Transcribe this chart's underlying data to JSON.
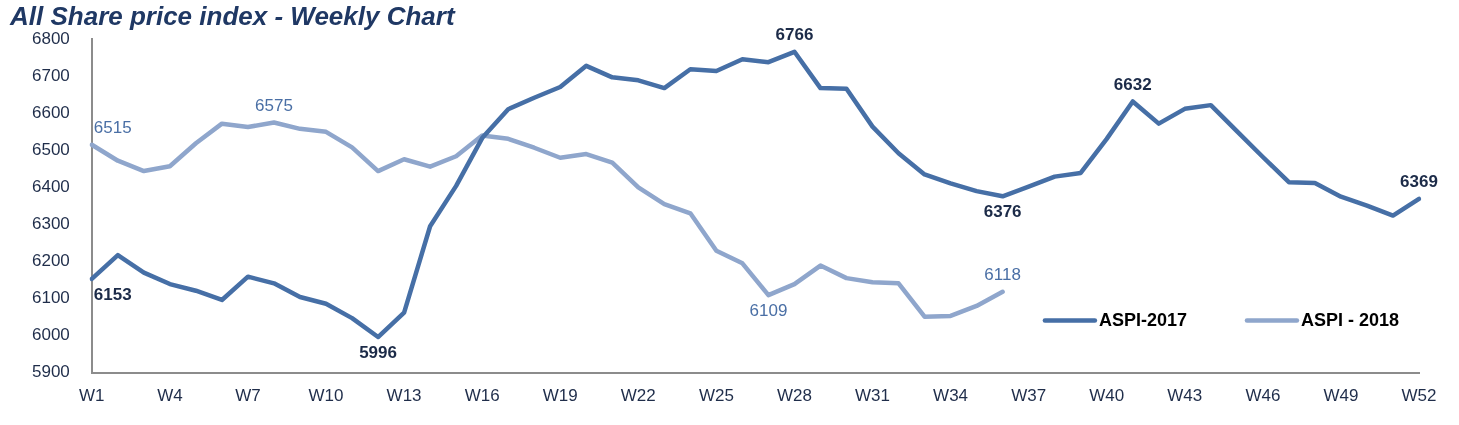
{
  "chart_data": {
    "type": "line",
    "title": "All Share price index - Weekly Chart",
    "categories": [
      "W1",
      null,
      null,
      "W4",
      null,
      null,
      "W7",
      null,
      null,
      "W10",
      null,
      null,
      "W13",
      null,
      null,
      "W16",
      null,
      null,
      "W19",
      null,
      null,
      "W22",
      null,
      null,
      "W25",
      null,
      null,
      "W28",
      null,
      null,
      "W31",
      null,
      null,
      "W34",
      null,
      null,
      "W37",
      null,
      null,
      "W40",
      null,
      null,
      "W43",
      null,
      null,
      "W46",
      null,
      null,
      "W49",
      null,
      null,
      "W52"
    ],
    "series": [
      {
        "name": "ASPI-2017",
        "color": "#466fa6",
        "values": [
          6153,
          6217,
          6170,
          6139,
          6121,
          6096,
          6159,
          6141,
          6104,
          6086,
          6047,
          5996,
          6062,
          6295,
          6404,
          6533,
          6611,
          6642,
          6671,
          6728,
          6697,
          6689,
          6668,
          6719,
          6714,
          6746,
          6738,
          6766,
          6668,
          6666,
          6564,
          6492,
          6435,
          6411,
          6390,
          6376,
          6402,
          6429,
          6439,
          6531,
          6632,
          6572,
          6612,
          6622,
          6552,
          6482,
          6414,
          6412,
          6375,
          6351,
          6324,
          6369
        ],
        "value_labels": [
          "6153",
          null,
          null,
          null,
          null,
          null,
          null,
          null,
          null,
          null,
          null,
          "5996",
          null,
          null,
          null,
          null,
          null,
          null,
          null,
          null,
          null,
          null,
          null,
          null,
          null,
          null,
          null,
          "6766",
          null,
          null,
          null,
          null,
          null,
          null,
          null,
          "6376",
          null,
          null,
          null,
          null,
          "6632",
          null,
          null,
          null,
          null,
          null,
          null,
          null,
          null,
          null,
          null,
          "6369"
        ]
      },
      {
        "name": "ASPI - 2018",
        "color": "#8fa6cc",
        "values": [
          6515,
          6472,
          6444,
          6457,
          6519,
          6572,
          6563,
          6575,
          6558,
          6550,
          6508,
          6444,
          6476,
          6456,
          6484,
          6540,
          6531,
          6507,
          6480,
          6490,
          6467,
          6400,
          6355,
          6330,
          6229,
          6195,
          6109,
          6139,
          6189,
          6155,
          6144,
          6141,
          6051,
          6053,
          6080,
          6118,
          null,
          null,
          null,
          null,
          null,
          null,
          null,
          null,
          null,
          null,
          null,
          null,
          null,
          null,
          null,
          null
        ],
        "value_labels": [
          "6515",
          null,
          null,
          null,
          null,
          null,
          null,
          "6575",
          null,
          null,
          null,
          null,
          null,
          null,
          null,
          null,
          null,
          null,
          null,
          null,
          null,
          null,
          null,
          null,
          null,
          null,
          "6109",
          null,
          null,
          null,
          null,
          null,
          null,
          null,
          null,
          "6118",
          null,
          null,
          null,
          null,
          null,
          null,
          null,
          null,
          null,
          null,
          null,
          null,
          null,
          null,
          null,
          null
        ]
      }
    ],
    "ylim": [
      5900,
      6800
    ],
    "yticks": [
      5900,
      6000,
      6100,
      6200,
      6300,
      6400,
      6500,
      6600,
      6700,
      6800
    ],
    "grid": false,
    "legend": "bottom right",
    "marker": "none",
    "line_style": "solid"
  }
}
